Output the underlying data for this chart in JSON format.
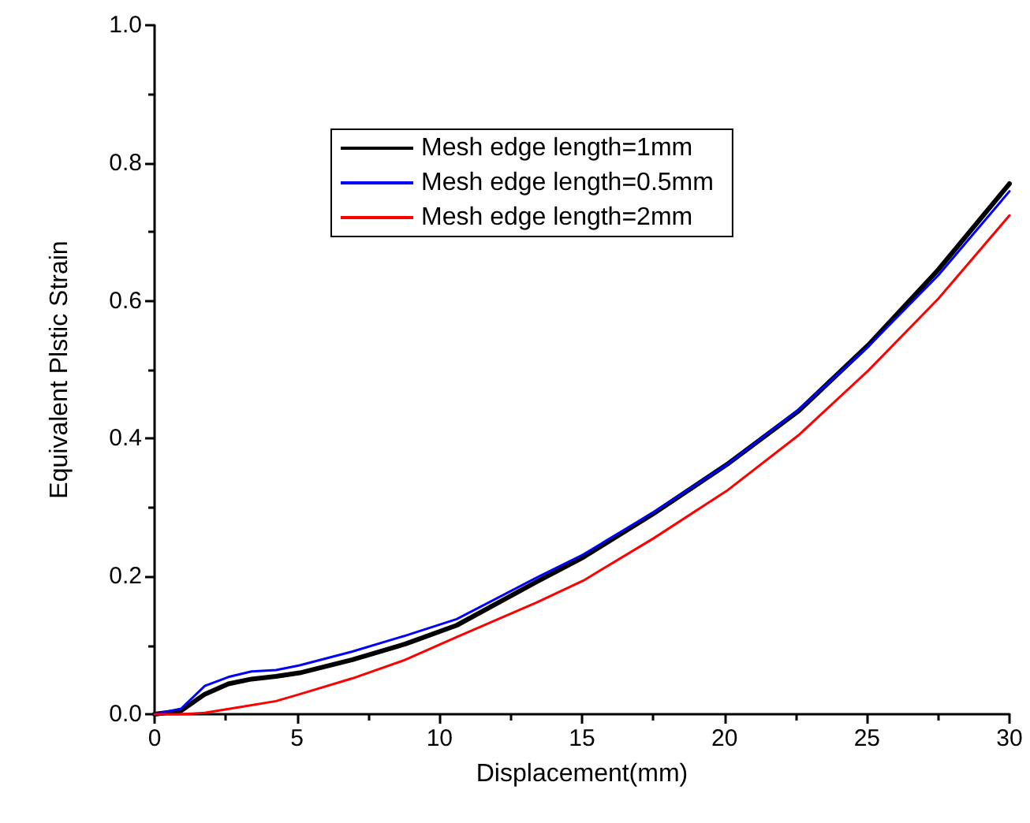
{
  "chart_data": {
    "type": "line",
    "xlabel": "Displacement(mm)",
    "ylabel": "Equivalent Plstic Strain",
    "xlim": [
      0,
      30
    ],
    "xticks": [
      0,
      5,
      10,
      15,
      20,
      25,
      30
    ],
    "ylim": [
      0,
      1.0
    ],
    "yticks": [
      {
        "value": 0,
        "label": "0.0"
      },
      {
        "value": 0.2,
        "label": "0.2"
      },
      {
        "value": 0.4,
        "label": "0.4"
      },
      {
        "value": 0.6,
        "label": "0.6"
      },
      {
        "value": 0.8,
        "label": "0.8"
      },
      {
        "value": 1.0,
        "label": "1.0"
      }
    ],
    "grid": false,
    "legend": "top",
    "marker": "none",
    "line_style": "solid",
    "series": [
      {
        "name": "Mesh edge length=1mm",
        "color": "#000000",
        "x": [
          0,
          0.93,
          1.76,
          2.59,
          3.4,
          4.26,
          5.09,
          6.94,
          8.8,
          10.6,
          13.4,
          15.05,
          17.5,
          20.07,
          22.6,
          25.05,
          27.5,
          30
        ],
        "values": [
          0,
          0.005,
          0.029,
          0.044,
          0.051,
          0.055,
          0.06,
          0.079,
          0.102,
          0.129,
          0.192,
          0.228,
          0.291,
          0.362,
          0.44,
          0.536,
          0.645,
          0.77
        ]
      },
      {
        "name": "Mesh edge length=0.5mm",
        "color": "#0000ff",
        "x": [
          0,
          0.93,
          1.76,
          2.59,
          3.4,
          4.26,
          5.09,
          6.94,
          8.8,
          10.6,
          13.4,
          15.05,
          17.5,
          20.07,
          22.6,
          25.05,
          27.5,
          30
        ],
        "values": [
          0,
          0.008,
          0.041,
          0.054,
          0.062,
          0.064,
          0.071,
          0.091,
          0.114,
          0.138,
          0.198,
          0.232,
          0.293,
          0.362,
          0.442,
          0.534,
          0.637,
          0.759
        ]
      },
      {
        "name": "Mesh edge length=2mm",
        "color": "#ff0000",
        "x": [
          0,
          0.93,
          1.76,
          3.24,
          4.26,
          5.09,
          6.94,
          8.8,
          10.6,
          13.4,
          15.05,
          17.5,
          20.07,
          22.6,
          25.05,
          27.5,
          30
        ],
        "values": [
          0,
          0,
          0.002,
          0.012,
          0.019,
          0.029,
          0.052,
          0.079,
          0.112,
          0.162,
          0.194,
          0.255,
          0.324,
          0.405,
          0.499,
          0.603,
          0.724
        ]
      }
    ]
  }
}
